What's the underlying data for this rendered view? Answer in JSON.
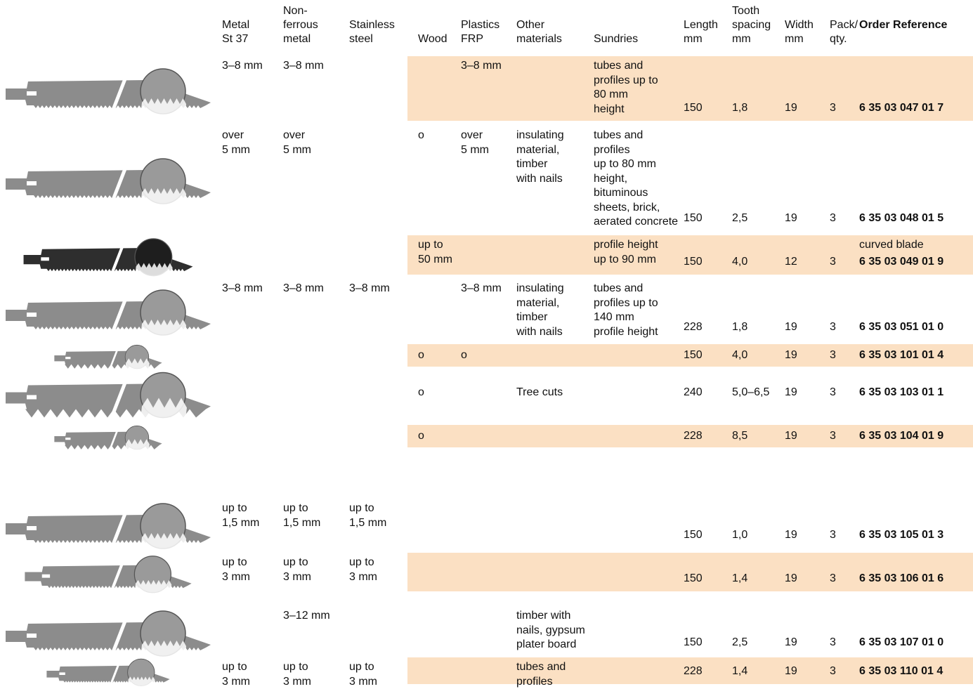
{
  "colors": {
    "band": "#fbe0c3",
    "blade": "#8c8c8c",
    "blade_dark": "#2e2e2e",
    "text": "#111111"
  },
  "headers": {
    "metal": "Metal\nSt 37",
    "nonferrous": "Non-\nferrous\nmetal",
    "stainless": "Stainless\nsteel",
    "wood": "Wood",
    "plastics": "Plastics\nFRP",
    "other": "Other\nmaterials",
    "sundries": "Sundries",
    "length": "Length\nmm",
    "tooth": "Tooth\nspacing\nmm",
    "width": "Width\nmm",
    "pack": "Pack/\nqty.",
    "order": "Order Reference"
  },
  "rows": [
    {
      "shaded": true,
      "blade": "fine",
      "metal": "3–8 mm",
      "nonferrous": "3–8 mm",
      "stainless": "",
      "wood": "",
      "plastics": "3–8 mm",
      "other": "",
      "sundries": "tubes and\nprofiles up to\n80 mm\nheight",
      "length": "150",
      "tooth": "1,8",
      "width": "19",
      "pack": "3",
      "note": "",
      "order": "6 35 03 047 01 7"
    },
    {
      "shaded": false,
      "blade": "fine",
      "metal": "over\n5 mm",
      "nonferrous": "over\n5 mm",
      "stainless": "",
      "wood": "o",
      "plastics": "over\n5 mm",
      "other": "insulating\nmaterial,\ntimber\nwith nails",
      "sundries": "tubes and\nprofiles\nup to 80 mm\nheight,\nbituminous\nsheets, brick,\naerated concrete",
      "length": "150",
      "tooth": "2,5",
      "width": "19",
      "pack": "3",
      "note": "",
      "order": "6 35 03 048 01 5"
    },
    {
      "shaded": true,
      "blade": "curved",
      "metal": "",
      "nonferrous": "",
      "stainless": "",
      "wood": "up to\n50 mm",
      "plastics": "",
      "other": "",
      "sundries": "profile height\nup to 90 mm",
      "length": "150",
      "tooth": "4,0",
      "width": "12",
      "pack": "3",
      "note": "curved blade",
      "order": "6 35 03 049 01 9"
    },
    {
      "shaded": false,
      "blade": "fine",
      "metal": "3–8 mm",
      "nonferrous": "3–8 mm",
      "stainless": "3–8 mm",
      "wood": "",
      "plastics": "3–8 mm",
      "other": "insulating\nmaterial,\ntimber\nwith nails",
      "sundries": "tubes and\nprofiles up to\n140 mm\nprofile height",
      "length": "228",
      "tooth": "1,8",
      "width": "19",
      "pack": "3",
      "note": "",
      "order": "6 35 03 051 01 0"
    },
    {
      "shaded": true,
      "blade": "coarse",
      "metal": "",
      "nonferrous": "",
      "stainless": "",
      "wood": "o",
      "plastics": "o",
      "other": "",
      "sundries": "",
      "length": "150",
      "tooth": "4,0",
      "width": "19",
      "pack": "3",
      "note": "",
      "order": "6 35 03 101 01 4"
    },
    {
      "shaded": false,
      "blade": "coarse",
      "metal": "",
      "nonferrous": "",
      "stainless": "",
      "wood": "o",
      "plastics": "",
      "other": "Tree cuts",
      "sundries": "",
      "length": "240",
      "tooth": "5,0–6,5",
      "width": "19",
      "pack": "3",
      "note": "",
      "order": "6 35 03 103 01 1"
    },
    {
      "shaded": true,
      "blade": "coarse",
      "metal": "",
      "nonferrous": "",
      "stainless": "",
      "wood": "o",
      "plastics": "",
      "other": "",
      "sundries": "",
      "length": "228",
      "tooth": "8,5",
      "width": "19",
      "pack": "3",
      "note": "",
      "order": "6 35 03 104 01 9"
    },
    {
      "shaded": false,
      "blade": "fine",
      "metal": "up to\n1,5 mm",
      "nonferrous": "up to\n1,5 mm",
      "stainless": "up to\n1,5 mm",
      "wood": "",
      "plastics": "",
      "other": "",
      "sundries": "",
      "length": "150",
      "tooth": "1,0",
      "width": "19",
      "pack": "3",
      "note": "",
      "order": "6 35 03 105 01 3"
    },
    {
      "shaded": true,
      "blade": "fine",
      "metal": "up to\n3 mm",
      "nonferrous": "up to\n3 mm",
      "stainless": "up to\n3 mm",
      "wood": "",
      "plastics": "",
      "other": "",
      "sundries": "",
      "length": "150",
      "tooth": "1,4",
      "width": "19",
      "pack": "3",
      "note": "",
      "order": "6 35 03 106 01 6"
    },
    {
      "shaded": false,
      "blade": "fine",
      "metal": "",
      "nonferrous": "3–12 mm",
      "stainless": "",
      "wood": "",
      "plastics": "",
      "other": "timber with\nnails, gypsum\nplater board",
      "sundries": "",
      "length": "150",
      "tooth": "2,5",
      "width": "19",
      "pack": "3",
      "note": "",
      "order": "6 35 03 107 01 0"
    },
    {
      "shaded": true,
      "blade": "fine",
      "metal": "up to\n3 mm",
      "nonferrous": "up to\n3 mm",
      "stainless": "up to\n3 mm",
      "wood": "",
      "plastics": "",
      "other": "tubes and\nprofiles",
      "sundries": "",
      "length": "228",
      "tooth": "1,4",
      "width": "19",
      "pack": "3",
      "note": "",
      "order": "6 35 03 110 01 4"
    }
  ]
}
